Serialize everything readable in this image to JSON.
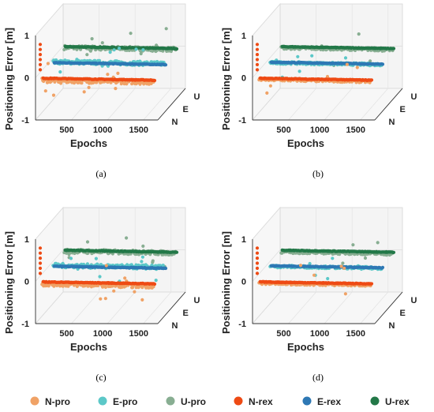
{
  "figure": {
    "panels": [
      {
        "caption": "(a)"
      },
      {
        "caption": "(b)"
      },
      {
        "caption": "(c)"
      },
      {
        "caption": "(d)"
      }
    ],
    "legend": [
      {
        "label": "N-pro",
        "color": "#F0A266"
      },
      {
        "label": "E-pro",
        "color": "#5CC8C8"
      },
      {
        "label": "U-pro",
        "color": "#88AE92"
      },
      {
        "label": "N-rex",
        "color": "#EE4A14"
      },
      {
        "label": "E-rex",
        "color": "#2E78B4"
      },
      {
        "label": "U-rex",
        "color": "#237848"
      }
    ]
  },
  "chart_data": [
    {
      "type": "scatter",
      "panel": "(a)",
      "xlabel": "Epochs",
      "ylabel": "Positioning Error [m]",
      "depth_ticks": [
        "N",
        "E",
        "U"
      ],
      "x_ticks": [
        500,
        1000,
        1500
      ],
      "z_ticks": [
        -1,
        0,
        1
      ],
      "xlim": [
        0,
        1700
      ],
      "zlim": [
        -1,
        1
      ],
      "series": [
        {
          "name": "N-pro",
          "depth": "N",
          "level": -0.12,
          "noise": "high"
        },
        {
          "name": "N-rex",
          "depth": "N",
          "level": -0.1,
          "noise": "low"
        },
        {
          "name": "E-pro",
          "depth": "E",
          "level": 0.02,
          "noise": "high"
        },
        {
          "name": "E-rex",
          "depth": "E",
          "level": -0.03,
          "noise": "low"
        },
        {
          "name": "U-pro",
          "depth": "U",
          "level": 0.06,
          "noise": "high"
        },
        {
          "name": "U-rex",
          "depth": "U",
          "level": 0.05,
          "noise": "low"
        }
      ]
    },
    {
      "type": "scatter",
      "panel": "(b)",
      "xlabel": "Epochs",
      "ylabel": "Positioning Error [m]",
      "depth_ticks": [
        "N",
        "E",
        "U"
      ],
      "x_ticks": [
        500,
        1000,
        1500
      ],
      "z_ticks": [
        -1,
        0,
        1
      ],
      "xlim": [
        0,
        1700
      ],
      "zlim": [
        -1,
        1
      ],
      "series": [
        {
          "name": "N-pro",
          "depth": "N",
          "level": -0.1,
          "noise": "medium"
        },
        {
          "name": "N-rex",
          "depth": "N",
          "level": -0.1,
          "noise": "low"
        },
        {
          "name": "E-pro",
          "depth": "E",
          "level": 0.0,
          "noise": "medium"
        },
        {
          "name": "E-rex",
          "depth": "E",
          "level": -0.02,
          "noise": "low"
        },
        {
          "name": "U-pro",
          "depth": "U",
          "level": 0.05,
          "noise": "medium"
        },
        {
          "name": "U-rex",
          "depth": "U",
          "level": 0.05,
          "noise": "low"
        }
      ]
    },
    {
      "type": "scatter",
      "panel": "(c)",
      "xlabel": "Epochs",
      "ylabel": "Positioning Error [m]",
      "depth_ticks": [
        "N",
        "E",
        "U"
      ],
      "x_ticks": [
        500,
        1000,
        1500
      ],
      "z_ticks": [
        -1,
        0,
        1
      ],
      "xlim": [
        0,
        1700
      ],
      "zlim": [
        -1,
        1
      ],
      "series": [
        {
          "name": "N-pro",
          "depth": "N",
          "level": -0.12,
          "noise": "high"
        },
        {
          "name": "N-rex",
          "depth": "N",
          "level": -0.1,
          "noise": "low"
        },
        {
          "name": "E-pro",
          "depth": "E",
          "level": 0.02,
          "noise": "high"
        },
        {
          "name": "E-rex",
          "depth": "E",
          "level": -0.03,
          "noise": "low"
        },
        {
          "name": "U-pro",
          "depth": "U",
          "level": 0.06,
          "noise": "high"
        },
        {
          "name": "U-rex",
          "depth": "U",
          "level": 0.05,
          "noise": "low"
        }
      ]
    },
    {
      "type": "scatter",
      "panel": "(d)",
      "xlabel": "Epochs",
      "ylabel": "Positioning Error [m]",
      "depth_ticks": [
        "N",
        "E",
        "U"
      ],
      "x_ticks": [
        500,
        1000,
        1500
      ],
      "z_ticks": [
        -1,
        0,
        1
      ],
      "xlim": [
        0,
        1700
      ],
      "zlim": [
        -1,
        1
      ],
      "series": [
        {
          "name": "N-pro",
          "depth": "N",
          "level": -0.1,
          "noise": "medium"
        },
        {
          "name": "N-rex",
          "depth": "N",
          "level": -0.1,
          "noise": "low"
        },
        {
          "name": "E-pro",
          "depth": "E",
          "level": 0.0,
          "noise": "medium"
        },
        {
          "name": "E-rex",
          "depth": "E",
          "level": -0.02,
          "noise": "low"
        },
        {
          "name": "U-pro",
          "depth": "U",
          "level": 0.04,
          "noise": "medium"
        },
        {
          "name": "U-rex",
          "depth": "U",
          "level": 0.05,
          "noise": "low"
        }
      ]
    }
  ]
}
